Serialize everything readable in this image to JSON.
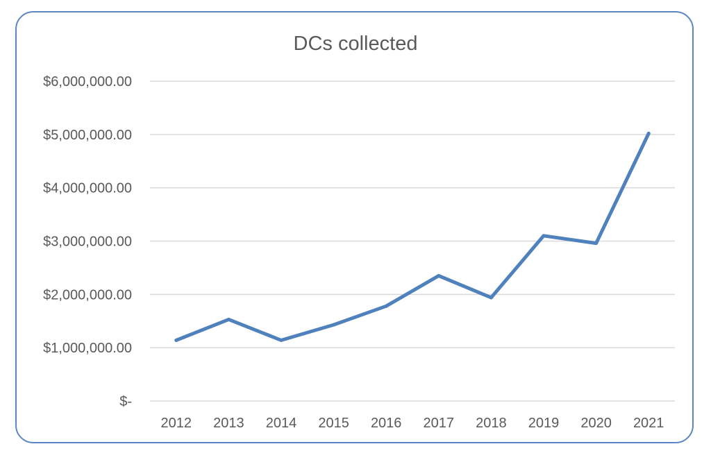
{
  "chart_data": {
    "type": "line",
    "title": "DCs collected",
    "xlabel": "",
    "ylabel": "",
    "categories": [
      "2012",
      "2013",
      "2014",
      "2015",
      "2016",
      "2017",
      "2018",
      "2019",
      "2020",
      "2021"
    ],
    "series": [
      {
        "values": [
          1140000,
          1530000,
          1140000,
          1430000,
          1780000,
          2350000,
          1940000,
          3100000,
          2960000,
          5020000
        ],
        "color": "#4f81bd"
      }
    ],
    "ylim": [
      0,
      6000000
    ],
    "yticks": [
      0,
      1000000,
      2000000,
      3000000,
      4000000,
      5000000,
      6000000
    ],
    "ytick_labels": [
      "$-",
      "$1,000,000.00",
      "$2,000,000.00",
      "$3,000,000.00",
      "$4,000,000.00",
      "$5,000,000.00",
      "$6,000,000.00"
    ],
    "grid": true,
    "legend": "none"
  },
  "colors": {
    "frame_border": "#5b86c2",
    "gridline": "#d9d9d9",
    "text": "#595959"
  }
}
